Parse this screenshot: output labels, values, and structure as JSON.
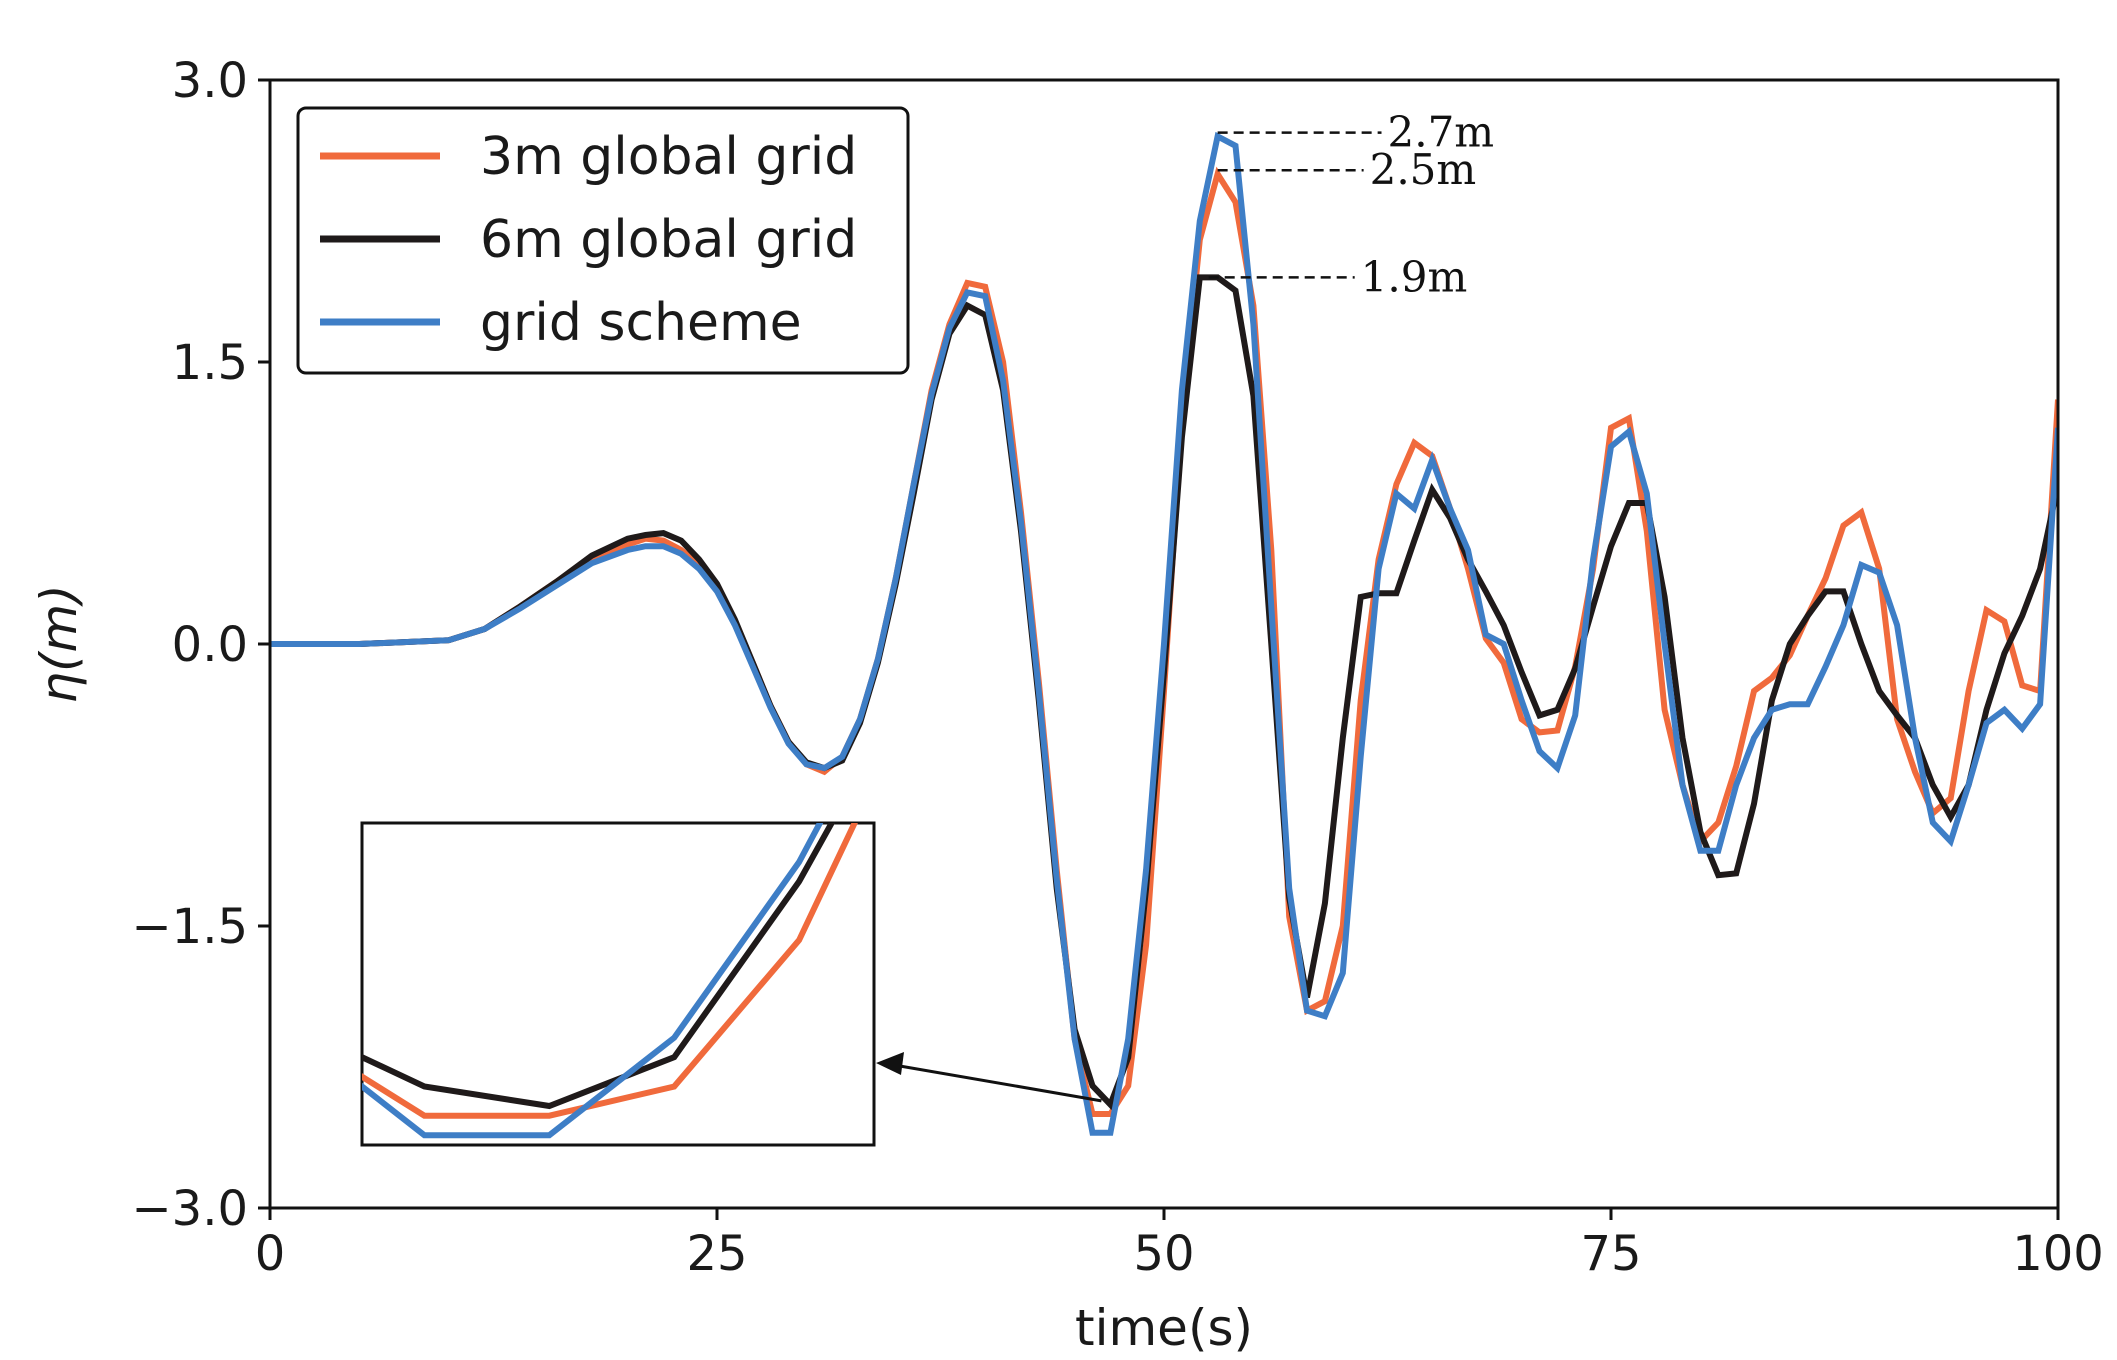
{
  "chart_data": {
    "type": "line",
    "xlabel": "time(s)",
    "ylabel": "η(m)",
    "xlim": [
      0,
      100
    ],
    "ylim": [
      -3.0,
      3.0
    ],
    "xticks": [
      "0",
      "25",
      "50",
      "75",
      "100"
    ],
    "yticks": [
      "3.0",
      "1.5",
      "0.0",
      "−1.5",
      "−3.0"
    ],
    "xtick_values": [
      0,
      25,
      50,
      75,
      100
    ],
    "ytick_values": [
      3.0,
      1.5,
      0.0,
      -1.5,
      -3.0
    ],
    "grid": false,
    "legend_position": "top-left",
    "series": [
      {
        "name": "3m global grid",
        "color": "#f06a3c",
        "x": [
          0,
          5,
          10,
          12,
          14,
          16,
          18,
          20,
          21,
          22,
          23,
          24,
          25,
          26,
          27,
          28,
          29,
          30,
          31,
          32,
          33,
          34,
          35,
          36,
          37,
          38,
          39,
          40,
          41,
          42,
          43,
          44,
          45,
          46,
          47,
          48,
          49,
          50,
          51,
          52,
          53,
          54,
          55,
          56,
          57,
          58,
          59,
          60,
          61,
          62,
          63,
          64,
          65,
          66,
          67,
          68,
          69,
          70,
          71,
          72,
          73,
          74,
          75,
          76,
          77,
          78,
          79,
          80,
          81,
          82,
          83,
          84,
          85,
          86,
          87,
          88,
          89,
          90,
          91,
          92,
          93,
          94,
          95,
          96,
          97,
          98,
          99,
          100
        ],
        "y": [
          0,
          0,
          0.02,
          0.08,
          0.2,
          0.33,
          0.46,
          0.53,
          0.56,
          0.55,
          0.5,
          0.42,
          0.3,
          0.12,
          -0.1,
          -0.33,
          -0.52,
          -0.64,
          -0.68,
          -0.6,
          -0.4,
          -0.08,
          0.35,
          0.85,
          1.35,
          1.7,
          1.92,
          1.9,
          1.5,
          0.7,
          -0.2,
          -1.2,
          -2.1,
          -2.5,
          -2.5,
          -2.35,
          -1.6,
          -0.25,
          1.2,
          2.15,
          2.5,
          2.35,
          1.8,
          0.5,
          -1.45,
          -1.95,
          -1.9,
          -1.5,
          -0.3,
          0.45,
          0.85,
          1.07,
          1.0,
          0.72,
          0.4,
          0.03,
          -0.1,
          -0.4,
          -0.47,
          -0.46,
          -0.12,
          0.4,
          1.15,
          1.2,
          0.6,
          -0.35,
          -0.75,
          -1.05,
          -0.95,
          -0.65,
          -0.25,
          -0.18,
          -0.06,
          0.15,
          0.35,
          0.63,
          0.7,
          0.4,
          -0.4,
          -0.68,
          -0.9,
          -0.82,
          -0.25,
          0.18,
          0.12,
          -0.22,
          -0.25,
          1.3
        ]
      },
      {
        "name": "6m global grid",
        "color": "#1f1a1a",
        "x": [
          0,
          5,
          10,
          12,
          14,
          16,
          18,
          20,
          21,
          22,
          23,
          24,
          25,
          26,
          27,
          28,
          29,
          30,
          31,
          32,
          33,
          34,
          35,
          36,
          37,
          38,
          39,
          40,
          41,
          42,
          43,
          44,
          45,
          46,
          47,
          48,
          49,
          50,
          51,
          52,
          53,
          54,
          55,
          56,
          57,
          58,
          59,
          60,
          61,
          62,
          63,
          64,
          65,
          66,
          67,
          68,
          69,
          70,
          71,
          72,
          73,
          74,
          75,
          76,
          77,
          78,
          79,
          80,
          81,
          82,
          83,
          84,
          85,
          86,
          87,
          88,
          89,
          90,
          91,
          92,
          93,
          94,
          95,
          96,
          97,
          98,
          99,
          100
        ],
        "y": [
          0,
          0,
          0.02,
          0.08,
          0.2,
          0.33,
          0.47,
          0.56,
          0.58,
          0.59,
          0.55,
          0.45,
          0.32,
          0.13,
          -0.1,
          -0.33,
          -0.52,
          -0.63,
          -0.66,
          -0.62,
          -0.42,
          -0.1,
          0.32,
          0.8,
          1.3,
          1.65,
          1.8,
          1.75,
          1.35,
          0.6,
          -0.3,
          -1.3,
          -2.05,
          -2.35,
          -2.45,
          -2.2,
          -1.3,
          -0.15,
          1.1,
          1.95,
          1.95,
          1.88,
          1.32,
          0.0,
          -1.35,
          -1.88,
          -1.38,
          -0.5,
          0.25,
          0.27,
          0.27,
          0.55,
          0.82,
          0.67,
          0.45,
          0.28,
          0.1,
          -0.15,
          -0.38,
          -0.35,
          -0.13,
          0.2,
          0.52,
          0.75,
          0.75,
          0.25,
          -0.5,
          -1.0,
          -1.23,
          -1.22,
          -0.85,
          -0.3,
          0.0,
          0.15,
          0.28,
          0.28,
          0.0,
          -0.25,
          -0.38,
          -0.5,
          -0.75,
          -0.92,
          -0.75,
          -0.35,
          -0.05,
          0.15,
          0.4,
          0.85
        ]
      },
      {
        "name": "grid scheme",
        "color": "#3e7ec6",
        "x": [
          0,
          5,
          10,
          12,
          14,
          16,
          18,
          20,
          21,
          22,
          23,
          24,
          25,
          26,
          27,
          28,
          29,
          30,
          31,
          32,
          33,
          34,
          35,
          36,
          37,
          38,
          39,
          40,
          41,
          42,
          43,
          44,
          45,
          46,
          47,
          48,
          49,
          50,
          51,
          52,
          53,
          54,
          55,
          56,
          57,
          58,
          59,
          60,
          61,
          62,
          63,
          64,
          65,
          66,
          67,
          68,
          69,
          70,
          71,
          72,
          73,
          74,
          75,
          76,
          77,
          78,
          79,
          80,
          81,
          82,
          83,
          84,
          85,
          86,
          87,
          88,
          89,
          90,
          91,
          92,
          93,
          94,
          95,
          96,
          97,
          98,
          99,
          100
        ],
        "y": [
          0,
          0,
          0.02,
          0.08,
          0.19,
          0.31,
          0.43,
          0.5,
          0.52,
          0.52,
          0.48,
          0.4,
          0.28,
          0.1,
          -0.12,
          -0.34,
          -0.53,
          -0.64,
          -0.66,
          -0.6,
          -0.4,
          -0.08,
          0.35,
          0.85,
          1.33,
          1.68,
          1.87,
          1.85,
          1.4,
          0.65,
          -0.25,
          -1.25,
          -2.1,
          -2.6,
          -2.6,
          -2.1,
          -1.2,
          0.0,
          1.35,
          2.25,
          2.7,
          2.65,
          1.7,
          0.2,
          -1.3,
          -1.95,
          -1.98,
          -1.75,
          -0.6,
          0.4,
          0.8,
          0.72,
          0.98,
          0.72,
          0.5,
          0.05,
          0.0,
          -0.3,
          -0.57,
          -0.66,
          -0.38,
          0.45,
          1.05,
          1.13,
          0.8,
          0.0,
          -0.75,
          -1.1,
          -1.1,
          -0.75,
          -0.5,
          -0.35,
          -0.32,
          -0.32,
          -0.12,
          0.1,
          0.42,
          0.38,
          0.1,
          -0.5,
          -0.95,
          -1.05,
          -0.75,
          -0.42,
          -0.35,
          -0.45,
          -0.32,
          1.15
        ]
      }
    ],
    "annotations": [
      {
        "text": "2.7m",
        "x": 53,
        "y": 2.72,
        "text_x": 62.5
      },
      {
        "text": "2.5m",
        "x": 53,
        "y": 2.52,
        "text_x": 61.5
      },
      {
        "text": "1.9m",
        "x": 52.5,
        "y": 1.95,
        "text_x": 61.0
      }
    ],
    "inset": {
      "description_hidden": true,
      "zoom_xlim": [
        45.5,
        49.6
      ],
      "zoom_ylim": [
        -2.65,
        -1.0
      ],
      "arrow_from": {
        "x": 46.5,
        "y": -2.43
      },
      "note": "zoom of the trough near t=47s"
    }
  }
}
